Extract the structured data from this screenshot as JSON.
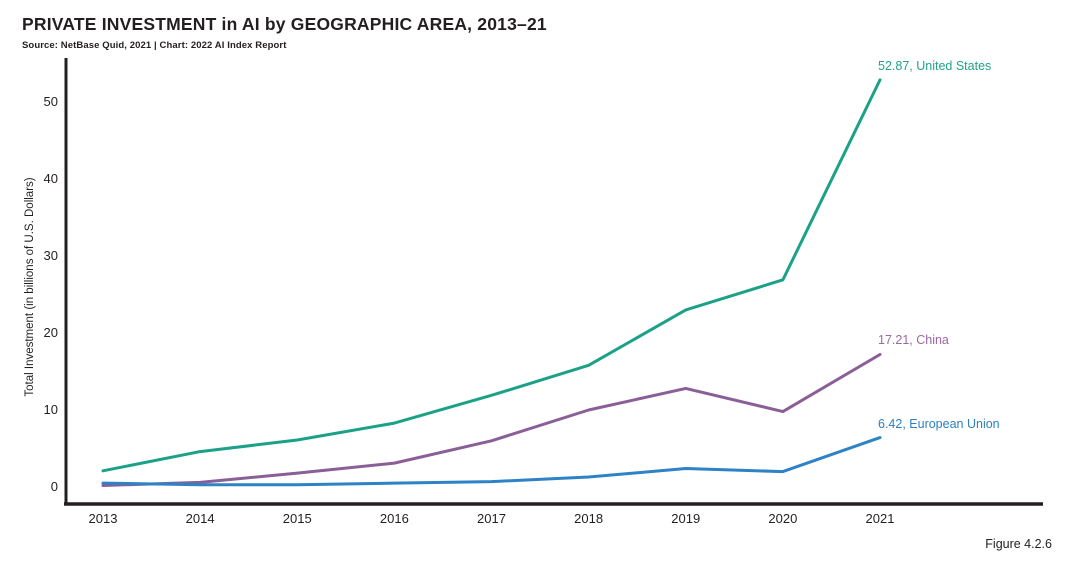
{
  "header": {
    "title": "PRIVATE INVESTMENT in AI by GEOGRAPHIC AREA, 2013–21",
    "source": "Source: NetBase Quid, 2021 | Chart: 2022 AI Index Report"
  },
  "footer": {
    "figure_label": "Figure 4.2.6"
  },
  "colors": {
    "axis": "#231f20",
    "text": "#231f20",
    "background": "#ffffff",
    "us": "#1ba187",
    "china_line": "#8a5f98",
    "china_label": "#9e66a4",
    "eu": "#2e82c6"
  },
  "chart_data": {
    "type": "line",
    "title": "PRIVATE INVESTMENT in AI by GEOGRAPHIC AREA, 2013–21",
    "xlabel": "",
    "ylabel": "Total Investment (in billions of U.S. Dollars)",
    "categories": [
      "2013",
      "2014",
      "2015",
      "2016",
      "2017",
      "2018",
      "2019",
      "2020",
      "2021"
    ],
    "y_ticks": [
      0,
      10,
      20,
      30,
      40,
      50
    ],
    "ylim": [
      0,
      55
    ],
    "grid": false,
    "legend_position": "end-of-line-labels",
    "series": [
      {
        "name": "United States",
        "end_label": "52.87, United States",
        "color": "#1ba187",
        "label_color": "#23a38b",
        "values": [
          2.1,
          4.6,
          6.1,
          8.3,
          11.9,
          15.8,
          23.0,
          26.9,
          52.87
        ]
      },
      {
        "name": "China",
        "end_label": "17.21, China",
        "color": "#8a5f98",
        "label_color": "#9e66a4",
        "values": [
          0.2,
          0.6,
          1.8,
          3.1,
          6.0,
          10.0,
          12.8,
          9.8,
          17.21
        ]
      },
      {
        "name": "European Union",
        "end_label": "6.42, European Union",
        "color": "#2e82c6",
        "label_color": "#2e7fc2",
        "values": [
          0.5,
          0.3,
          0.3,
          0.5,
          0.7,
          1.3,
          2.4,
          2.0,
          6.42
        ]
      }
    ]
  }
}
